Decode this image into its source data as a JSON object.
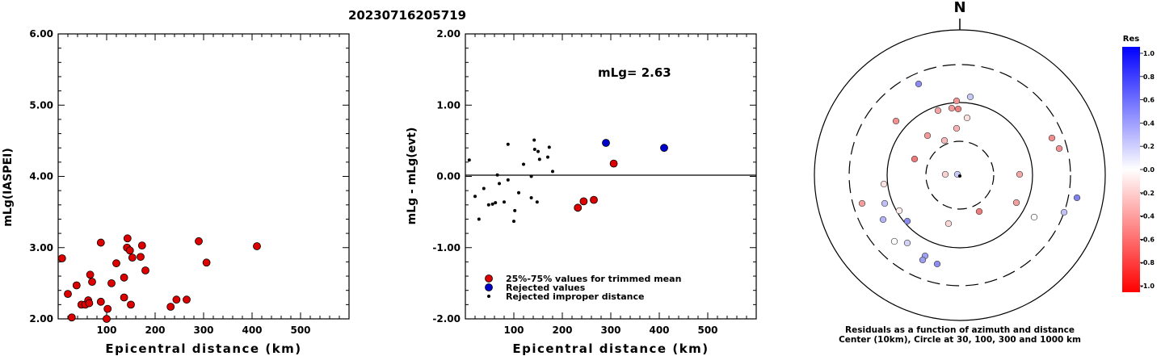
{
  "page": {
    "title": "20230716205719"
  },
  "chart_data": [
    {
      "type": "scatter",
      "title": "",
      "xlabel": "Epicentral distance (km)",
      "ylabel": "mLg(IASPEI)",
      "xlim": [
        0,
        600
      ],
      "ylim": [
        2.0,
        6.0
      ],
      "xticks": [
        "100",
        "200",
        "300",
        "400",
        "500"
      ],
      "yticks": [
        "2.00",
        "3.00",
        "4.00",
        "5.00",
        "6.00"
      ],
      "series": [
        {
          "color": "#dd0000",
          "points": [
            [
              8,
              2.85
            ],
            [
              20,
              2.35
            ],
            [
              28,
              2.02
            ],
            [
              38,
              2.47
            ],
            [
              48,
              2.2
            ],
            [
              56,
              2.2
            ],
            [
              62,
              2.26
            ],
            [
              64,
              2.22
            ],
            [
              66,
              2.62
            ],
            [
              70,
              2.52
            ],
            [
              88,
              3.07
            ],
            [
              88,
              2.24
            ],
            [
              100,
              2.0
            ],
            [
              102,
              2.14
            ],
            [
              110,
              2.5
            ],
            [
              120,
              2.78
            ],
            [
              136,
              2.58
            ],
            [
              136,
              2.3
            ],
            [
              142,
              3.0
            ],
            [
              143,
              3.13
            ],
            [
              148,
              2.96
            ],
            [
              150,
              2.2
            ],
            [
              153,
              2.86
            ],
            [
              170,
              2.87
            ],
            [
              173,
              3.03
            ],
            [
              180,
              2.68
            ],
            [
              232,
              2.17
            ],
            [
              244,
              2.27
            ],
            [
              265,
              2.27
            ],
            [
              290,
              3.09
            ],
            [
              306,
              2.79
            ],
            [
              410,
              3.02
            ]
          ]
        }
      ]
    },
    {
      "type": "scatter",
      "title": "",
      "xlabel": "Epicentral distance (km)",
      "ylabel": "mLg - mLg(evt)",
      "xlim": [
        0,
        600
      ],
      "ylim": [
        -2.0,
        2.0
      ],
      "xticks": [
        "100",
        "200",
        "300",
        "400",
        "500"
      ],
      "yticks": [
        "-2.00",
        "-1.00",
        "0.00",
        "1.00",
        "2.00"
      ],
      "annotation": "mLg= 2.63",
      "legend_position": "bottom-left",
      "series": [
        {
          "name": "25%-75% values for trimmed mean",
          "color": "#dd0000",
          "points": [
            [
              232,
              -0.44
            ],
            [
              244,
              -0.35
            ],
            [
              265,
              -0.33
            ],
            [
              306,
              0.18
            ]
          ]
        },
        {
          "name": "Rejected values",
          "color": "#0000cc",
          "points": [
            [
              290,
              0.47
            ],
            [
              410,
              0.4
            ]
          ]
        },
        {
          "name": "Rejected improper distance",
          "color": "#000000",
          "points": [
            [
              8,
              0.23
            ],
            [
              20,
              -0.28
            ],
            [
              28,
              -0.6
            ],
            [
              38,
              -0.17
            ],
            [
              48,
              -0.4
            ],
            [
              56,
              -0.39
            ],
            [
              62,
              -0.37
            ],
            [
              66,
              0.02
            ],
            [
              70,
              -0.1
            ],
            [
              80,
              -0.36
            ],
            [
              88,
              0.45
            ],
            [
              88,
              -0.05
            ],
            [
              100,
              -0.63
            ],
            [
              102,
              -0.48
            ],
            [
              110,
              -0.23
            ],
            [
              120,
              0.17
            ],
            [
              136,
              0.0
            ],
            [
              136,
              -0.3
            ],
            [
              142,
              0.51
            ],
            [
              143,
              0.38
            ],
            [
              148,
              -0.36
            ],
            [
              150,
              0.35
            ],
            [
              153,
              0.24
            ],
            [
              170,
              0.27
            ],
            [
              173,
              0.41
            ],
            [
              180,
              0.07
            ]
          ]
        }
      ]
    },
    {
      "type": "scatter",
      "subtype": "polar",
      "north_label": "N",
      "caption_line1": "Residuals as a function of azimuth and distance",
      "caption_line2": "Center (10km), Circle at 30, 100, 300 and 1000 km",
      "colorbar": {
        "title": "Res",
        "ticks": [
          "1.0",
          "0.8",
          "0.6",
          "0.4",
          "0.2",
          "0.0",
          "-0.2",
          "-0.4",
          "-0.6",
          "-0.8",
          "-1.0"
        ]
      },
      "points": [
        {
          "x": -51,
          "y": -113,
          "c": "#8c8cf0"
        },
        {
          "x": 13,
          "y": -97,
          "c": "#c8c8f5"
        },
        {
          "x": -10,
          "y": -83,
          "c": "#f39a9a"
        },
        {
          "x": -2,
          "y": -82,
          "c": "#f08080"
        },
        {
          "x": -4,
          "y": -92,
          "c": "#f29494"
        },
        {
          "x": -27,
          "y": -80,
          "c": "#f4a2a2"
        },
        {
          "x": -79,
          "y": -67,
          "c": "#f29090"
        },
        {
          "x": 9,
          "y": -71,
          "c": "#fce0e0"
        },
        {
          "x": -4,
          "y": -58,
          "c": "#f6b2b2"
        },
        {
          "x": -40,
          "y": -49,
          "c": "#f29a9a"
        },
        {
          "x": -19,
          "y": -43,
          "c": "#f7b7b7"
        },
        {
          "x": 114,
          "y": -46,
          "c": "#f08c8c"
        },
        {
          "x": 123,
          "y": -33,
          "c": "#f29090"
        },
        {
          "x": -56,
          "y": -20,
          "c": "#f07878"
        },
        {
          "x": -18,
          "y": -1,
          "c": "#fad0d0"
        },
        {
          "x": -3,
          "y": -1,
          "c": "#c8c8f8"
        },
        {
          "x": -94,
          "y": 11,
          "c": "#fde2e2"
        },
        {
          "x": 74,
          "y": -1,
          "c": "#f5a7a7"
        },
        {
          "x": -121,
          "y": 35,
          "c": "#f49e9e"
        },
        {
          "x": -93,
          "y": 35,
          "c": "#c0c0f5"
        },
        {
          "x": 145,
          "y": 28,
          "c": "#8282ee"
        },
        {
          "x": 70,
          "y": 34,
          "c": "#f49e9e"
        },
        {
          "x": -75,
          "y": 44,
          "c": "#fdeeee"
        },
        {
          "x": 24,
          "y": 45,
          "c": "#f07a7a"
        },
        {
          "x": -95,
          "y": 55,
          "c": "#b4b4f5"
        },
        {
          "x": -65,
          "y": 57,
          "c": "#8c8cf0"
        },
        {
          "x": 129,
          "y": 46,
          "c": "#c0c0f5"
        },
        {
          "x": 92,
          "y": 52,
          "c": "#ffffff"
        },
        {
          "x": -14,
          "y": 60,
          "c": "#fbd6d6"
        },
        {
          "x": -81,
          "y": 82,
          "c": "#ffffff"
        },
        {
          "x": -65,
          "y": 84,
          "c": "#d2d2f7"
        },
        {
          "x": -43,
          "y": 100,
          "c": "#a0a0f2"
        },
        {
          "x": -46,
          "y": 105,
          "c": "#9c9cf0"
        },
        {
          "x": -28,
          "y": 110,
          "c": "#8c8cf0"
        }
      ]
    }
  ]
}
